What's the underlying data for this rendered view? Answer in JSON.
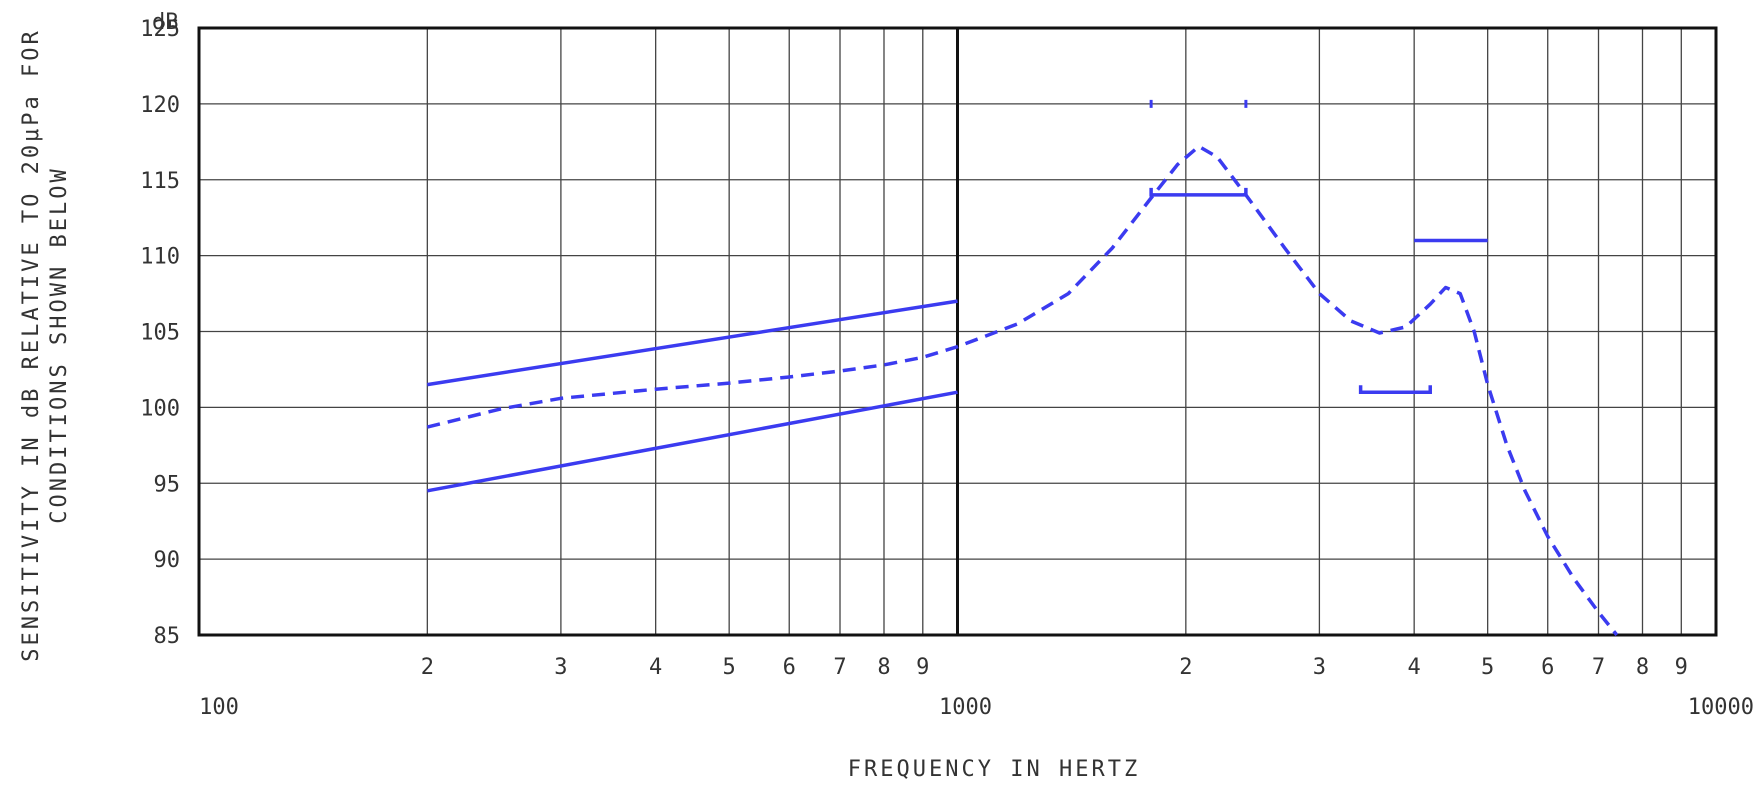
{
  "chart_data": {
    "type": "line",
    "title": "",
    "xlabel": "FREQUENCY IN HERTZ",
    "ylabel": [
      "SENSITIVITY IN dB RELATIVE TO 20μPa FOR",
      "CONDITIONS SHOWN BELOW"
    ],
    "x_scale": "log",
    "xlim": [
      100,
      10000
    ],
    "ylim": [
      85,
      125
    ],
    "grid": true,
    "y_unit": "dB",
    "x_ticks_major": [
      {
        "value": 100,
        "label": "100"
      },
      {
        "value": 1000,
        "label": "1000"
      },
      {
        "value": 10000,
        "label": "10000"
      }
    ],
    "x_ticks_minor": [
      {
        "value": 200,
        "label": "2"
      },
      {
        "value": 300,
        "label": "3"
      },
      {
        "value": 400,
        "label": "4"
      },
      {
        "value": 500,
        "label": "5"
      },
      {
        "value": 600,
        "label": "6"
      },
      {
        "value": 700,
        "label": "7"
      },
      {
        "value": 800,
        "label": "8"
      },
      {
        "value": 900,
        "label": "9"
      },
      {
        "value": 2000,
        "label": "2"
      },
      {
        "value": 3000,
        "label": "3"
      },
      {
        "value": 4000,
        "label": "4"
      },
      {
        "value": 5000,
        "label": "5"
      },
      {
        "value": 6000,
        "label": "6"
      },
      {
        "value": 7000,
        "label": "7"
      },
      {
        "value": 8000,
        "label": "8"
      },
      {
        "value": 9000,
        "label": "9"
      }
    ],
    "y_ticks": [
      {
        "value": 85,
        "label": "85"
      },
      {
        "value": 90,
        "label": "90"
      },
      {
        "value": 95,
        "label": "95"
      },
      {
        "value": 100,
        "label": "100"
      },
      {
        "value": 105,
        "label": "105"
      },
      {
        "value": 110,
        "label": "110"
      },
      {
        "value": 115,
        "label": "115"
      },
      {
        "value": 120,
        "label": "120"
      },
      {
        "value": 125,
        "label": "125"
      }
    ],
    "series": [
      {
        "style": "solid",
        "x": [
          200,
          1000
        ],
        "y": [
          101.5,
          107.0
        ]
      },
      {
        "style": "solid",
        "x": [
          200,
          1000
        ],
        "y": [
          94.5,
          101.0
        ]
      },
      {
        "style": "dashed",
        "x": [
          200,
          250,
          300,
          400,
          500,
          600,
          700,
          800,
          900,
          1000,
          1200,
          1400,
          1600,
          1800,
          1950,
          2080,
          2200,
          2400,
          2700,
          3000,
          3300,
          3600,
          3900,
          4200,
          4400,
          4600,
          4800,
          5000,
          5300,
          5600,
          6000,
          6500,
          7000,
          7400
        ],
        "y": [
          98.7,
          99.9,
          100.6,
          101.2,
          101.6,
          102.0,
          102.4,
          102.8,
          103.3,
          104.0,
          105.5,
          107.5,
          110.5,
          113.8,
          116.0,
          117.2,
          116.5,
          114.0,
          110.5,
          107.5,
          105.7,
          104.9,
          105.3,
          106.8,
          107.9,
          107.5,
          105.0,
          101.5,
          97.5,
          94.5,
          91.5,
          88.7,
          86.5,
          85.0
        ]
      }
    ],
    "annotations": [
      {
        "kind": "bracket",
        "x": [
          1800,
          2400
        ],
        "y": 114.0
      },
      {
        "kind": "tick",
        "x": 1800,
        "y": 120.0
      },
      {
        "kind": "tick",
        "x": 2400,
        "y": 120.0
      },
      {
        "kind": "segment",
        "x": [
          4000,
          5000
        ],
        "y": 111.0
      },
      {
        "kind": "bracket",
        "x": [
          3400,
          4200
        ],
        "y": 101.0
      }
    ],
    "colors": {
      "data": "#3b3bf0",
      "grid": "#444444",
      "axis": "#111111",
      "text": "#333333"
    }
  }
}
